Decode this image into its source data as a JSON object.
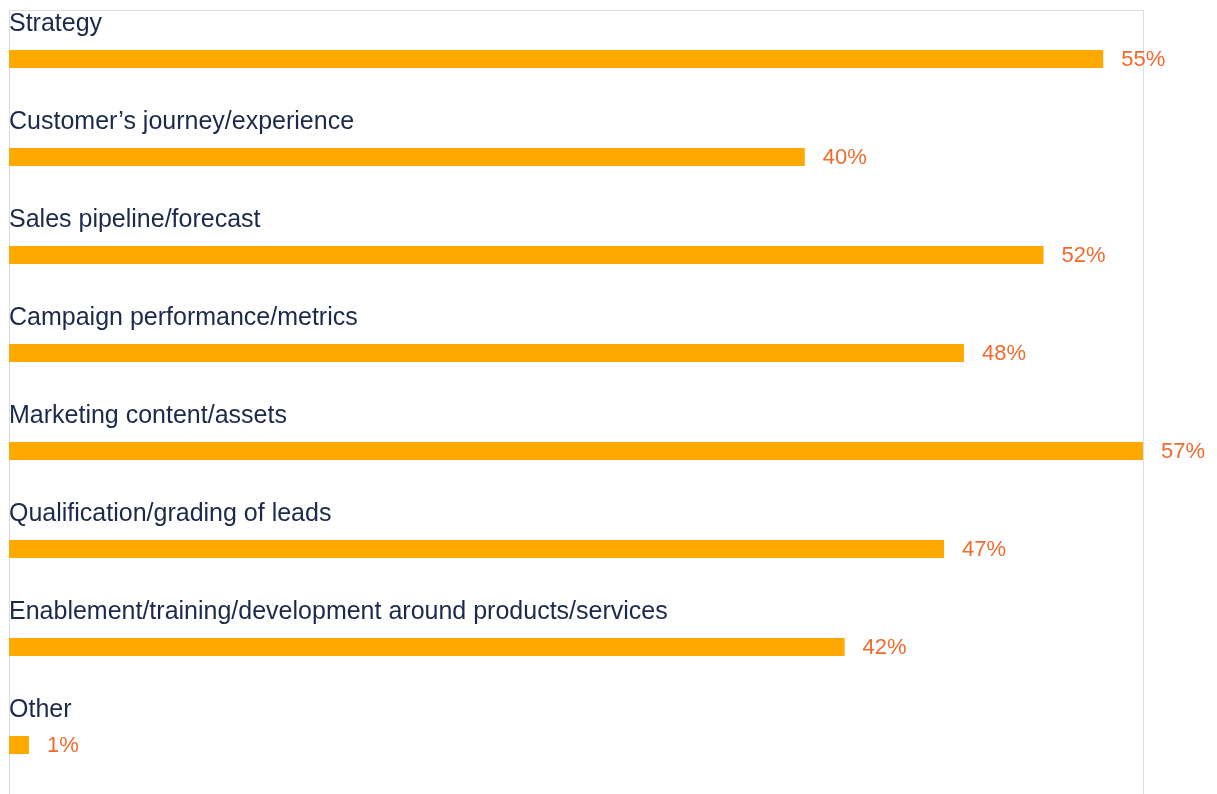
{
  "chart_data": {
    "type": "bar",
    "orientation": "horizontal",
    "categories": [
      "Strategy",
      "Customer’s journey/experience",
      "Sales pipeline/forecast",
      "Campaign performance/metrics",
      "Marketing content/assets",
      "Qualification/grading of leads",
      "Enablement/training/development around products/services",
      "Other"
    ],
    "values": [
      55,
      40,
      52,
      48,
      57,
      47,
      42,
      1
    ],
    "value_labels": [
      "55%",
      "40%",
      "52%",
      "48%",
      "57%",
      "47%",
      "42%",
      "1%"
    ],
    "color": "#ffa800"
  }
}
